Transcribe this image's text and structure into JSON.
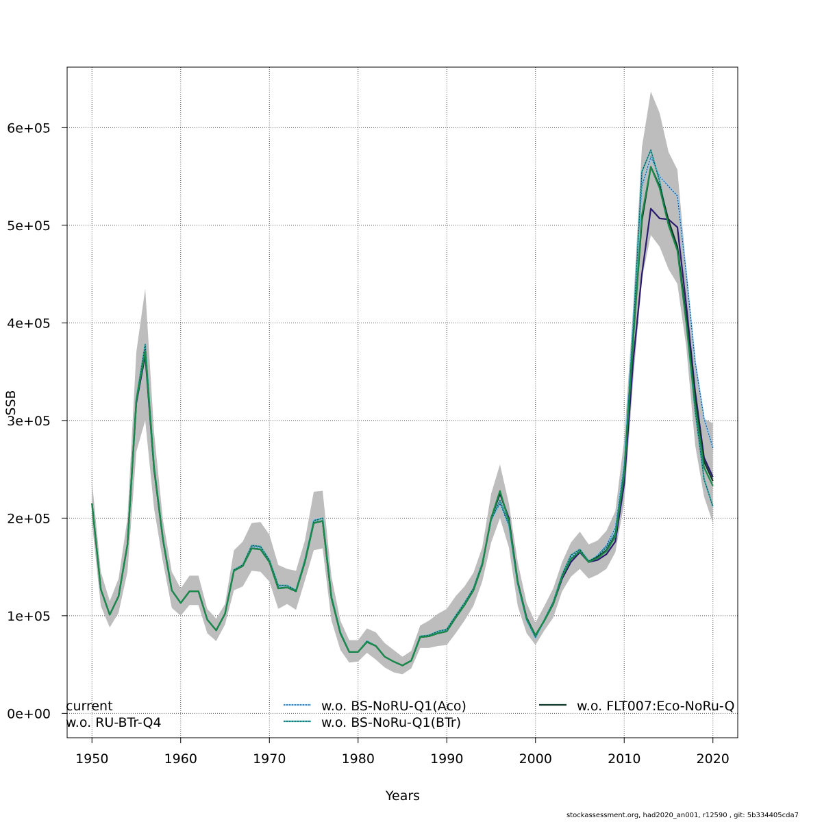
{
  "chart_data": {
    "type": "line",
    "xlabel": "Years",
    "ylabel": "SSB",
    "xlim": [
      1947.2,
      2022.8
    ],
    "ylim": [
      -25000,
      662000
    ],
    "x_ticks": [
      1950,
      1960,
      1970,
      1980,
      1990,
      2000,
      2010,
      2020
    ],
    "y_ticks": [
      0,
      100000,
      200000,
      300000,
      400000,
      500000,
      600000
    ],
    "y_tick_labels": [
      "0e+00",
      "1e+05",
      "2e+05",
      "3e+05",
      "4e+05",
      "5e+05",
      "6e+05"
    ],
    "grid": true,
    "legend_position": "bottom",
    "x": [
      1950,
      1951,
      1952,
      1953,
      1954,
      1955,
      1956,
      1957,
      1958,
      1959,
      1960,
      1961,
      1962,
      1963,
      1964,
      1965,
      1966,
      1967,
      1968,
      1969,
      1970,
      1971,
      1972,
      1973,
      1974,
      1975,
      1976,
      1977,
      1978,
      1979,
      1980,
      1981,
      1982,
      1983,
      1984,
      1985,
      1986,
      1987,
      1988,
      1989,
      1990,
      1991,
      1992,
      1993,
      1994,
      1995,
      1996,
      1997,
      1998,
      1999,
      2000,
      2001,
      2002,
      2003,
      2004,
      2005,
      2006,
      2007,
      2008,
      2009,
      2010,
      2011,
      2012,
      2013,
      2014,
      2015,
      2016,
      2017,
      2018,
      2019,
      2020
    ],
    "band": {
      "lower": [
        195000,
        110000,
        88000,
        103000,
        145000,
        268000,
        300000,
        210000,
        155000,
        108000,
        100000,
        111000,
        111000,
        82000,
        74000,
        91000,
        126000,
        130000,
        146000,
        145000,
        135000,
        107000,
        112000,
        106000,
        136000,
        167000,
        169000,
        95000,
        65000,
        52000,
        53000,
        62000,
        55000,
        47000,
        42000,
        40000,
        46000,
        67000,
        67000,
        69000,
        70000,
        82000,
        95000,
        110000,
        135000,
        175000,
        200000,
        170000,
        110000,
        82000,
        70000,
        85000,
        98000,
        125000,
        140000,
        148000,
        138000,
        142000,
        148000,
        165000,
        215000,
        340000,
        445000,
        490000,
        478000,
        455000,
        440000,
        375000,
        275000,
        222000,
        195000
      ],
      "upper": [
        238000,
        145000,
        115000,
        138000,
        200000,
        370000,
        435000,
        288000,
        198000,
        145000,
        128000,
        141000,
        141000,
        107000,
        97000,
        112000,
        167000,
        176000,
        195000,
        196000,
        183000,
        152000,
        148000,
        146000,
        177000,
        227000,
        228000,
        140000,
        95000,
        75000,
        75000,
        87000,
        83000,
        72000,
        65000,
        58000,
        64000,
        90000,
        95000,
        102000,
        107000,
        120000,
        130000,
        144000,
        170000,
        225000,
        255000,
        215000,
        155000,
        113000,
        93000,
        110000,
        128000,
        155000,
        175000,
        186000,
        173000,
        177000,
        187000,
        207000,
        280000,
        415000,
        580000,
        637000,
        615000,
        575000,
        557000,
        455000,
        360000,
        302000,
        297000
      ]
    },
    "series": [
      {
        "name": "current",
        "color": "#2a1a6e",
        "dash": "solid",
        "values": [
          215000,
          127000,
          101000,
          120000,
          173000,
          318000,
          367000,
          250000,
          178000,
          126000,
          113000,
          125000,
          125000,
          96000,
          85000,
          102000,
          146000,
          151000,
          169000,
          168000,
          155000,
          128000,
          129000,
          125000,
          155000,
          195000,
          197000,
          118000,
          82000,
          63000,
          63000,
          73000,
          69000,
          58000,
          53000,
          49000,
          54000,
          78000,
          79000,
          82000,
          84000,
          98000,
          111000,
          126000,
          152000,
          200000,
          225000,
          200000,
          135000,
          98000,
          80000,
          95000,
          112000,
          138000,
          155000,
          165000,
          155000,
          157000,
          163000,
          176000,
          235000,
          360000,
          450000,
          517000,
          507000,
          506000,
          498000,
          418000,
          330000,
          262000,
          242000
        ]
      },
      {
        "name": "w.o. BS-NoRU-Q1(Aco)",
        "color": "#87cefa",
        "dash": "dotted",
        "values": [
          215000,
          127000,
          101000,
          120000,
          173000,
          321000,
          375000,
          252000,
          179000,
          126000,
          113000,
          125000,
          125000,
          96000,
          85000,
          102000,
          147000,
          152000,
          171000,
          170000,
          156000,
          130000,
          131000,
          126000,
          156000,
          198000,
          200000,
          119000,
          83000,
          63000,
          63000,
          73000,
          69000,
          58000,
          53000,
          49000,
          54000,
          78000,
          80000,
          84000,
          85000,
          99000,
          112000,
          127000,
          153000,
          198000,
          215000,
          192000,
          132000,
          95000,
          77000,
          95000,
          113000,
          140000,
          160000,
          167000,
          155000,
          162000,
          172000,
          190000,
          255000,
          400000,
          540000,
          570000,
          550000,
          540000,
          530000,
          450000,
          360000,
          302000,
          272000
        ]
      },
      {
        "name": "w.o. BS-NoRu-Q1(BTr)",
        "color": "#3cb4a8",
        "dash": "dotted",
        "values": [
          215000,
          127000,
          101000,
          120000,
          173000,
          322000,
          378000,
          253000,
          179000,
          126000,
          113000,
          125000,
          125000,
          96000,
          85000,
          102000,
          147000,
          152000,
          172000,
          171000,
          157000,
          131000,
          131000,
          126000,
          157000,
          197000,
          200000,
          120000,
          83000,
          63000,
          63000,
          74000,
          69000,
          58000,
          53000,
          49000,
          54000,
          79000,
          80000,
          84000,
          86000,
          100000,
          113000,
          128000,
          154000,
          198000,
          218000,
          194000,
          133000,
          96000,
          78000,
          96000,
          114000,
          142000,
          162000,
          168000,
          156000,
          161000,
          170000,
          185000,
          250000,
          390000,
          555000,
          577000,
          545000,
          500000,
          477000,
          400000,
          310000,
          240000,
          212000
        ]
      },
      {
        "name": "w.o. FLT007:Eco-NoRu-Q",
        "color": "#0a3a1a",
        "dash": "dotted",
        "values": [
          215000,
          127000,
          101000,
          120000,
          173000,
          320000,
          370000,
          251000,
          178000,
          126000,
          113000,
          125000,
          125000,
          96000,
          85000,
          102000,
          146000,
          151000,
          169000,
          168000,
          155000,
          128000,
          129000,
          125000,
          155000,
          195000,
          197000,
          118000,
          82000,
          63000,
          63000,
          73000,
          69000,
          58000,
          53000,
          49000,
          54000,
          78000,
          79000,
          82000,
          84000,
          98000,
          111000,
          126000,
          152000,
          200000,
          226000,
          198000,
          134000,
          97000,
          80000,
          95000,
          112000,
          140000,
          158000,
          166000,
          155000,
          160000,
          167000,
          182000,
          245000,
          382000,
          505000,
          560000,
          540000,
          505000,
          478000,
          405000,
          322000,
          258000,
          238000
        ]
      },
      {
        "name": "w.o. RU-BTr-Q4",
        "color": "#1a8a4a",
        "dash": "solid",
        "values": [
          215000,
          127000,
          101000,
          120000,
          173000,
          320000,
          371000,
          251000,
          178000,
          126000,
          113000,
          125000,
          125000,
          96000,
          85000,
          102000,
          146000,
          151000,
          169000,
          168000,
          155000,
          128000,
          129000,
          125000,
          155000,
          195000,
          197000,
          118000,
          82000,
          63000,
          63000,
          73000,
          69000,
          58000,
          53000,
          49000,
          54000,
          78000,
          79000,
          82000,
          84000,
          98000,
          111000,
          126000,
          152000,
          200000,
          228000,
          197000,
          134000,
          97000,
          80000,
          95000,
          112000,
          140000,
          158000,
          166000,
          155000,
          159000,
          166000,
          181000,
          245000,
          380000,
          510000,
          560000,
          538000,
          500000,
          474000,
          400000,
          316000,
          252000,
          233000
        ]
      }
    ],
    "legend": [
      {
        "label": "current",
        "series": 0
      },
      {
        "label": "w.o. RU-BTr-Q4",
        "series": 4
      },
      {
        "label": "w.o. BS-NoRU-Q1(Aco)",
        "series": 1
      },
      {
        "label": "w.o. BS-NoRu-Q1(BTr)",
        "series": 2
      },
      {
        "label": "w.o. FLT007:Eco-NoRu-Q",
        "series": 3
      }
    ]
  },
  "footer": {
    "text": "stockassessment.org, had2020_an001, r12590 , git: 5b334405cda7"
  }
}
